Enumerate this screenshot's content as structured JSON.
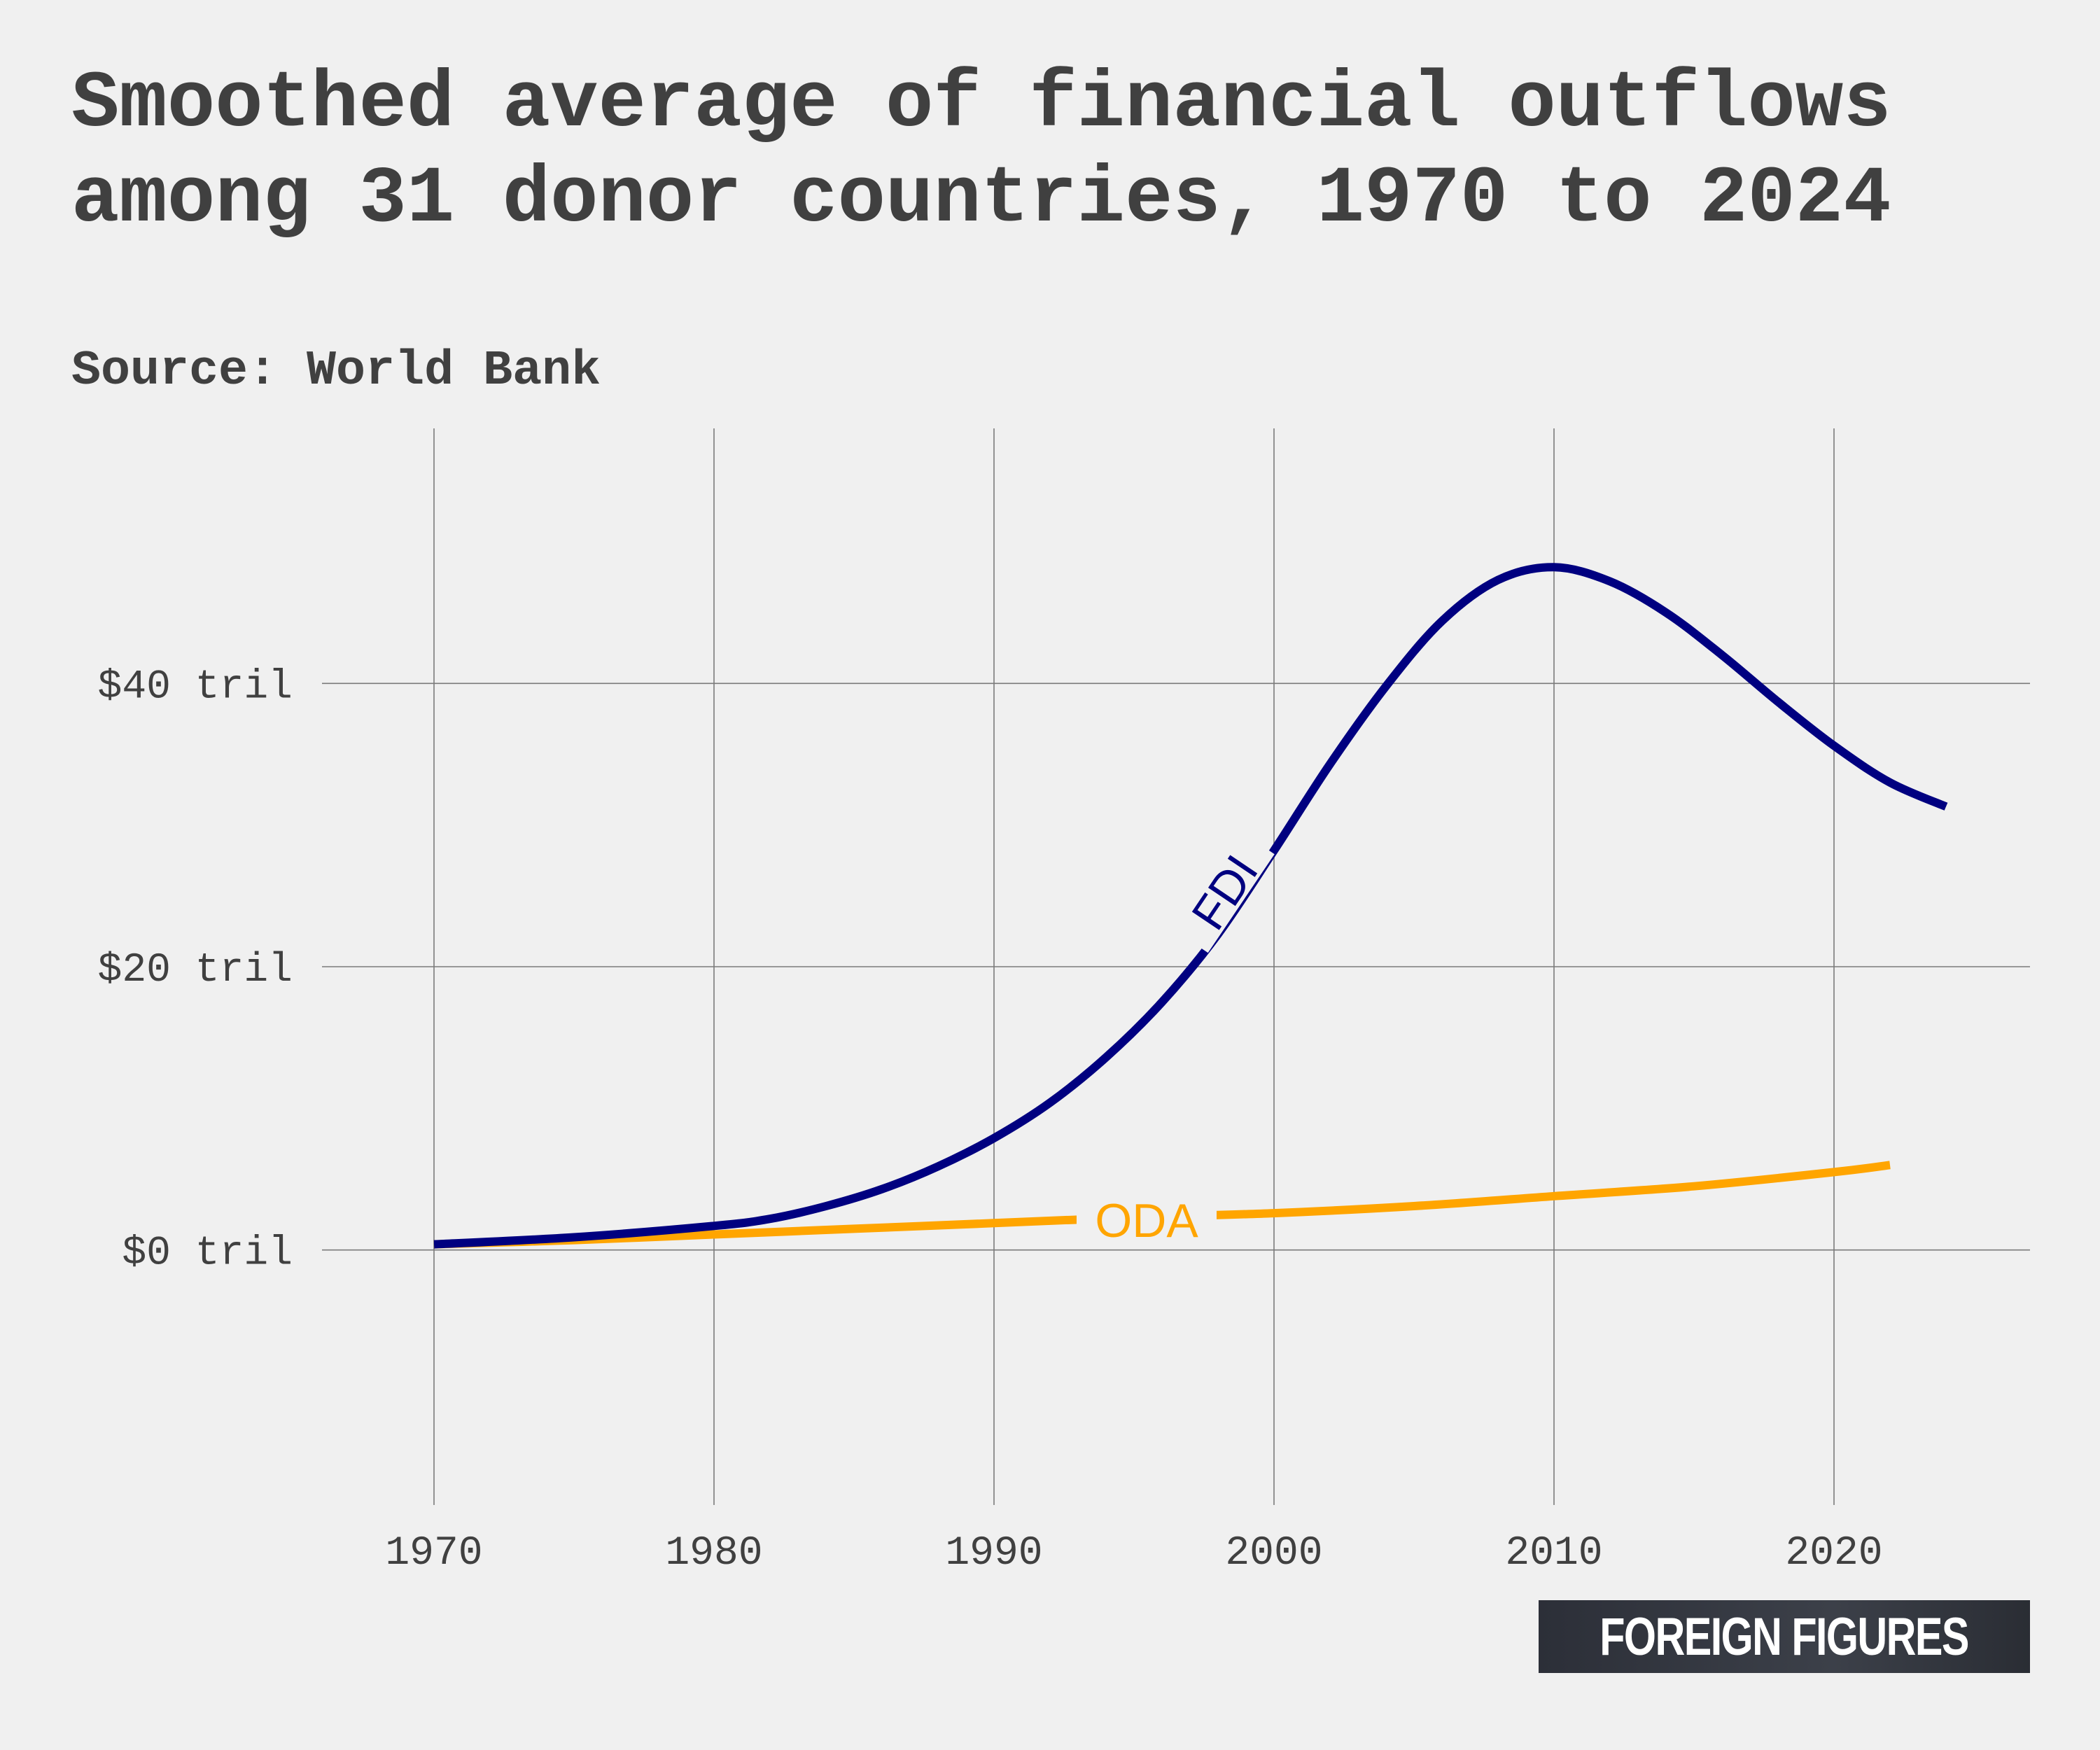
{
  "header": {
    "title": "Smoothed average of financial outflows among 31 donor countries, 1970 to 2024",
    "source": "Source: World Bank"
  },
  "logo": {
    "text": "FOREIGN FIGURES"
  },
  "colors": {
    "background": "#f0f0f0",
    "text": "#404040",
    "grid": "#7a7a7a",
    "fdi": "#000080",
    "oda": "#ffa500",
    "logo_bg": "#33363e",
    "logo_text": "#ffffff"
  },
  "chart_data": {
    "type": "line",
    "title": "Smoothed average of financial outflows among 31 donor countries, 1970 to 2024",
    "subtitle": "Source: World Bank",
    "xlabel": "",
    "ylabel": "",
    "xlim": [
      1966.5,
      2027
    ],
    "ylim": [
      -18,
      58
    ],
    "x_ticks": [
      1970,
      1980,
      1990,
      2000,
      2010,
      2020
    ],
    "x_tick_labels": [
      "1970",
      "1980",
      "1990",
      "2000",
      "2010",
      "2020"
    ],
    "y_ticks": [
      0,
      20,
      40
    ],
    "y_tick_labels": [
      "$0 tril",
      "$20 tril",
      "$40 tril"
    ],
    "grid": true,
    "legend": "none",
    "series": [
      {
        "name": "FDI",
        "color": "#000080",
        "label_position": "inline",
        "x": [
          1970,
          1975,
          1980,
          1982,
          1984,
          1986,
          1988,
          1990,
          1992,
          1994,
          1996,
          1998,
          2000,
          2002,
          2004,
          2006,
          2008,
          2010,
          2012,
          2014,
          2016,
          2018,
          2020,
          2022,
          2024
        ],
        "y": [
          0.4,
          0.9,
          1.7,
          2.2,
          3.1,
          4.3,
          5.9,
          7.9,
          10.4,
          13.6,
          17.5,
          22.3,
          28.2,
          34.3,
          39.8,
          44.4,
          47.3,
          48.2,
          47.2,
          45.0,
          42.0,
          38.7,
          35.6,
          33.0,
          31.3
        ]
      },
      {
        "name": "ODA",
        "color": "#ffa500",
        "label_position": "inline",
        "x": [
          1970,
          1975,
          1980,
          1985,
          1990,
          1995,
          2000,
          2005,
          2010,
          2015,
          2020,
          2022
        ],
        "y": [
          0.4,
          0.7,
          1.1,
          1.5,
          1.9,
          2.3,
          2.6,
          3.1,
          3.8,
          4.5,
          5.5,
          6.0
        ]
      }
    ]
  }
}
